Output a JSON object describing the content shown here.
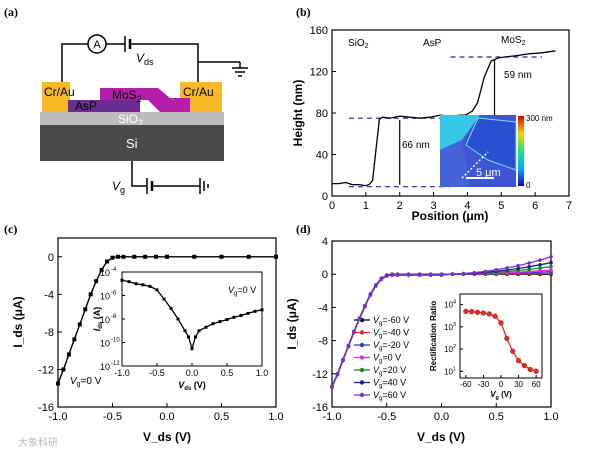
{
  "panel_labels": {
    "a": "(a)",
    "b": "(b)",
    "c": "(c)",
    "d": "(d)"
  },
  "panel_a": {
    "ammeter": "A",
    "vds": "V",
    "vds_sub": "ds",
    "cr_au_left": "Cr/Au",
    "cr_au_right": "Cr/Au",
    "mos2": "MoS",
    "mos2_sub": "2",
    "asp": "AsP",
    "sio2": "SiO",
    "sio2_sub": "2",
    "si": "Si",
    "vg": "V",
    "vg_sub": "g",
    "colors": {
      "cr_au": "#f7b928",
      "mos2": "#b51dab",
      "asp": "#6a2c92",
      "sio2": "#bdbdbd",
      "si": "#4a4a4a"
    }
  },
  "panel_b": {
    "region_sio2": "SiO",
    "region_sio2_sub": "2",
    "region_asp": "AsP",
    "region_mos2": "MoS",
    "region_mos2_sub": "2",
    "annot_59": "59 nm",
    "annot_66": "66 nm",
    "cbar_top": "300 nm",
    "cbar_bottom": "0",
    "scale_bar": "5 μm"
  },
  "panel_c": {
    "inset_vg": "V",
    "inset_vg_sub": "g",
    "inset_vg_val": "=0 V",
    "main_vg": "V",
    "main_vg_sub": "g",
    "main_vg_val": "=0 V",
    "inset_ylabel": "I",
    "inset_ylabel_sub": "ds",
    "inset_ylabel_unit": " (A)",
    "inset_xlabel": "V",
    "inset_xlabel_sub": "ds",
    "inset_xlabel_unit": " (V)",
    "inset_yticks": [
      "10",
      "10",
      "10",
      "10",
      "10"
    ],
    "inset_yexp": [
      "-4",
      "-6",
      "-8",
      "-10",
      "-12"
    ],
    "inset_xticks": [
      "-1.0",
      "-0.5",
      "0.0",
      "0.5",
      "1.0"
    ]
  },
  "panel_d": {
    "inset_ylabel": "Rectification Ratio",
    "inset_xlabel": "V",
    "inset_xlabel_sub": "g",
    "inset_xlabel_unit": " (V)",
    "inset_xticks": [
      "-60",
      "-30",
      "0",
      "30",
      "60"
    ],
    "inset_yticks": [
      "10",
      "10",
      "10",
      "10"
    ],
    "inset_yexp": [
      "4",
      "3",
      "2",
      "1"
    ],
    "legend_prefix": "V",
    "legend_sub": "g"
  },
  "watermark": "大象科研",
  "chart_data": [
    {
      "panel": "b",
      "type": "line",
      "xlabel": "Position (μm)",
      "ylabel": "Height (nm)",
      "xlim": [
        0,
        7
      ],
      "ylim": [
        0,
        160
      ],
      "xticks": [
        "0",
        "1",
        "2",
        "3",
        "4",
        "5",
        "6",
        "7"
      ],
      "yticks": [
        "0",
        "40",
        "80",
        "120",
        "160"
      ],
      "grid": false,
      "x": [
        0.0,
        0.2,
        0.4,
        0.6,
        0.8,
        1.0,
        1.1,
        1.2,
        1.3,
        1.4,
        1.5,
        1.7,
        2.0,
        2.3,
        2.6,
        2.9,
        3.2,
        3.5,
        3.8,
        3.95,
        4.05,
        4.15,
        4.3,
        4.5,
        4.7,
        4.9,
        5.1,
        5.4,
        5.8,
        6.2,
        6.6
      ],
      "values": [
        12,
        12,
        13,
        11,
        11,
        10,
        11,
        15,
        45,
        74,
        76,
        75,
        77,
        76,
        75,
        76,
        78,
        77,
        78,
        78,
        80,
        82,
        90,
        115,
        130,
        133,
        134,
        135,
        137,
        138,
        140
      ],
      "reference_lines": [
        9,
        75,
        134
      ]
    },
    {
      "panel": "c",
      "type": "line",
      "xlabel": "V_ds (V)",
      "ylabel": "I_ds (μA)",
      "xlim": [
        -1.0,
        1.0
      ],
      "ylim": [
        -16,
        2
      ],
      "xticks": [
        "-1.0",
        "-0.5",
        "0.0",
        "0.5",
        "1.0"
      ],
      "yticks": [
        "0",
        "-4",
        "-8",
        "-12",
        "-16"
      ],
      "grid": false,
      "x": [
        -1.0,
        -0.95,
        -0.9,
        -0.85,
        -0.8,
        -0.75,
        -0.7,
        -0.65,
        -0.6,
        -0.55,
        -0.5,
        -0.45,
        -0.4,
        -0.3,
        -0.2,
        -0.1,
        0.0,
        0.25,
        0.5,
        0.75,
        1.0
      ],
      "values": [
        -13.5,
        -12.0,
        -10.4,
        -8.8,
        -7.2,
        -5.6,
        -4.0,
        -2.6,
        -1.4,
        -0.5,
        -0.1,
        0,
        0,
        0,
        0,
        0,
        0,
        0,
        0,
        0,
        0
      ],
      "series": [
        {
          "name": "V_g=0 V"
        }
      ],
      "inset": {
        "type": "line",
        "ylog": true,
        "xlim": [
          -1.0,
          1.0
        ],
        "ylim": [
          1e-12,
          0.0001
        ],
        "x": [
          -1.0,
          -0.9,
          -0.8,
          -0.7,
          -0.6,
          -0.5,
          -0.4,
          -0.3,
          -0.2,
          -0.1,
          -0.05,
          0.0,
          0.05,
          0.1,
          0.2,
          0.3,
          0.4,
          0.5,
          0.6,
          0.7,
          0.8,
          0.9,
          1.0
        ],
        "values": [
          2e-05,
          1.5e-05,
          1e-05,
          8e-06,
          6e-06,
          3e-06,
          5e-07,
          8e-08,
          1e-08,
          1e-09,
          3e-10,
          3e-11,
          3e-10,
          1e-09,
          2e-09,
          4e-09,
          6e-09,
          9e-09,
          1.4e-08,
          2e-08,
          3e-08,
          4.5e-08,
          6e-08
        ]
      }
    },
    {
      "panel": "d",
      "type": "line",
      "xlabel": "V_ds (V)",
      "ylabel": "I_ds (μA)",
      "xlim": [
        -1.0,
        1.0
      ],
      "ylim": [
        -16,
        4
      ],
      "xticks": [
        "-1.0",
        "-0.5",
        "0.0",
        "0.5",
        "1.0"
      ],
      "yticks": [
        "4",
        "0",
        "-4",
        "-8",
        "-12",
        "-16"
      ],
      "grid": false,
      "legend_position": "left",
      "x": [
        -1.0,
        -0.95,
        -0.9,
        -0.85,
        -0.8,
        -0.75,
        -0.7,
        -0.65,
        -0.6,
        -0.55,
        -0.5,
        -0.45,
        -0.4,
        -0.3,
        -0.2,
        -0.1,
        0.0,
        0.1,
        0.2,
        0.3,
        0.4,
        0.5,
        0.6,
        0.7,
        0.8,
        0.9,
        1.0
      ],
      "series": [
        {
          "name": "=-60 V",
          "color": "#000000",
          "final": 0.0
        },
        {
          "name": "=-40 V",
          "color": "#e52b2b",
          "final": 0.1
        },
        {
          "name": "=-20 V",
          "color": "#2e3bd6",
          "final": 0.3
        },
        {
          "name": "=0 V",
          "color": "#e12be8",
          "final": 0.5
        },
        {
          "name": "=20 V",
          "color": "#1a8a22",
          "final": 0.9
        },
        {
          "name": "=40 V",
          "color": "#1a2a7a",
          "final": 1.4
        },
        {
          "name": "=60 V",
          "color": "#7b2fd6",
          "final": 2.1
        }
      ],
      "reverse_values": [
        -13.5,
        -12.0,
        -10.3,
        -8.6,
        -6.9,
        -5.3,
        -3.8,
        -2.4,
        -1.3,
        -0.5,
        -0.1,
        0,
        0,
        0,
        0,
        0,
        0
      ],
      "inset": {
        "type": "line",
        "ylog": true,
        "ylabel": "Rectification Ratio",
        "xlabel": "V_g (V)",
        "xlim": [
          -70,
          70
        ],
        "ylim": [
          5,
          30000
        ],
        "x": [
          -60,
          -50,
          -40,
          -30,
          -20,
          -10,
          0,
          10,
          20,
          30,
          40,
          50,
          60
        ],
        "values": [
          5000,
          4800,
          4500,
          4200,
          3800,
          3000,
          1500,
          300,
          80,
          30,
          18,
          12,
          10
        ]
      }
    }
  ]
}
